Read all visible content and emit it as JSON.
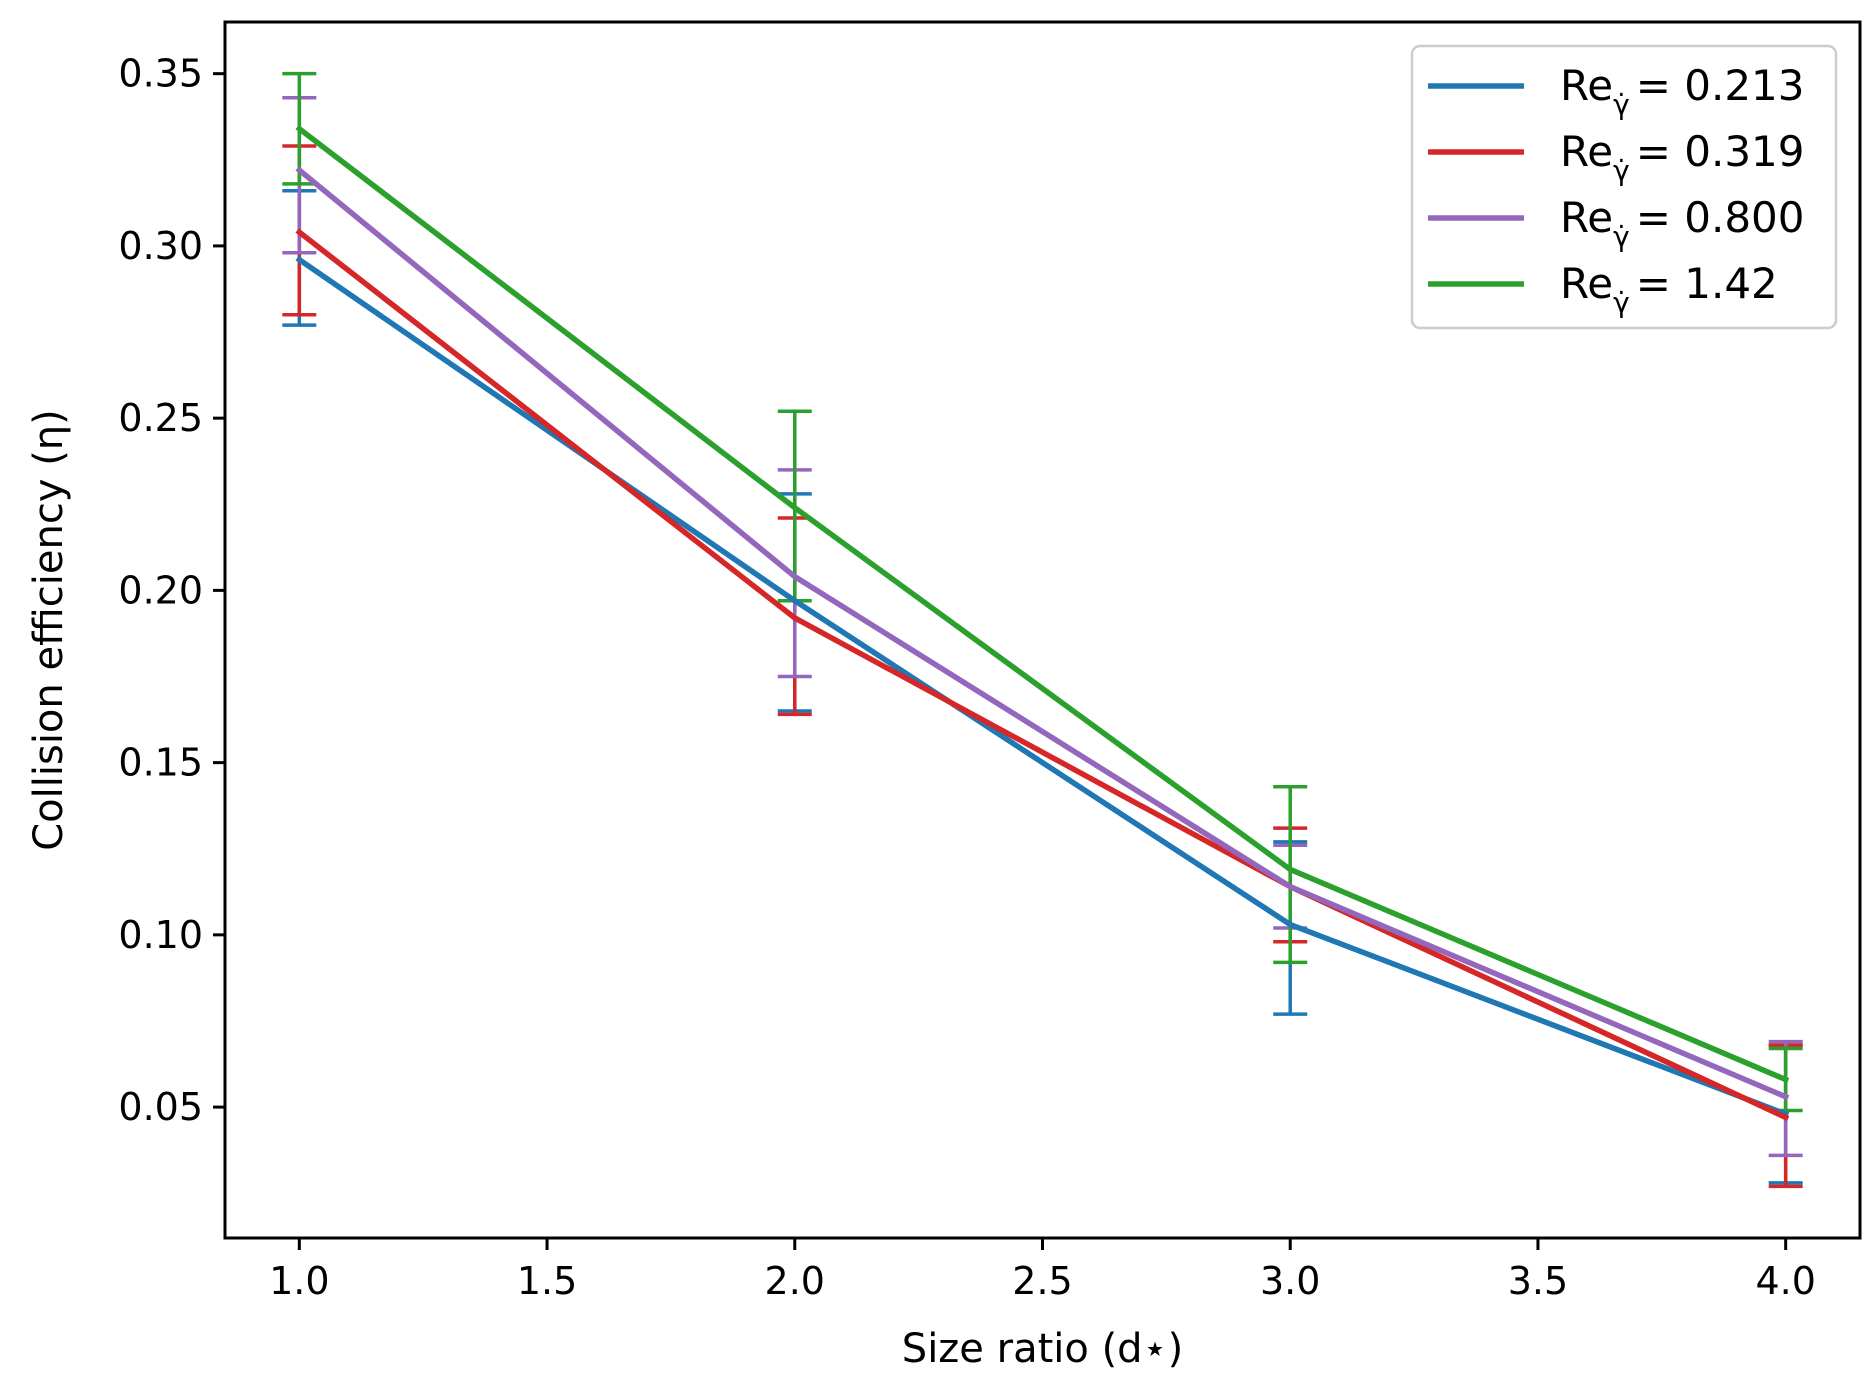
{
  "chart_data": {
    "type": "line",
    "title": "",
    "xlabel": "Size ratio (d⋆)",
    "ylabel": "Collision efficiency (η)",
    "x": [
      1.0,
      2.0,
      3.0,
      4.0
    ],
    "xlim": [
      0.85,
      4.15
    ],
    "ylim": [
      0.012,
      0.365
    ],
    "xticks": [
      "1.0",
      "1.5",
      "2.0",
      "2.5",
      "3.0",
      "3.5",
      "4.0"
    ],
    "yticks": [
      "0.05",
      "0.10",
      "0.15",
      "0.20",
      "0.25",
      "0.30",
      "0.35"
    ],
    "grid": false,
    "legend_position": "top-right",
    "series": [
      {
        "name": "Reγ̇ = 0.213",
        "legend_base": "Re",
        "legend_sub": "γ̇",
        "legend_value": "0.213",
        "color": "#1f77b4",
        "values": [
          0.296,
          0.197,
          0.103,
          0.048
        ],
        "err_low": [
          0.277,
          0.165,
          0.077,
          0.028
        ],
        "err_high": [
          0.316,
          0.228,
          0.127,
          0.068
        ]
      },
      {
        "name": "Reγ̇ = 0.319",
        "legend_base": "Re",
        "legend_sub": "γ̇",
        "legend_value": "0.319",
        "color": "#d62728",
        "values": [
          0.304,
          0.192,
          0.114,
          0.047
        ],
        "err_low": [
          0.28,
          0.164,
          0.098,
          0.027
        ],
        "err_high": [
          0.329,
          0.221,
          0.131,
          0.068
        ]
      },
      {
        "name": "Reγ̇ = 0.800",
        "legend_base": "Re",
        "legend_sub": "γ̇",
        "legend_value": "0.800",
        "color": "#9467bd",
        "values": [
          0.322,
          0.204,
          0.114,
          0.053
        ],
        "err_low": [
          0.298,
          0.175,
          0.102,
          0.036
        ],
        "err_high": [
          0.343,
          0.235,
          0.126,
          0.069
        ]
      },
      {
        "name": "Reγ̇ = 1.42",
        "legend_base": "Re",
        "legend_sub": "γ̇",
        "legend_value": "1.42",
        "color": "#2ca02c",
        "values": [
          0.334,
          0.224,
          0.119,
          0.058
        ],
        "err_low": [
          0.318,
          0.197,
          0.092,
          0.049
        ],
        "err_high": [
          0.35,
          0.252,
          0.143,
          0.067
        ]
      }
    ]
  }
}
